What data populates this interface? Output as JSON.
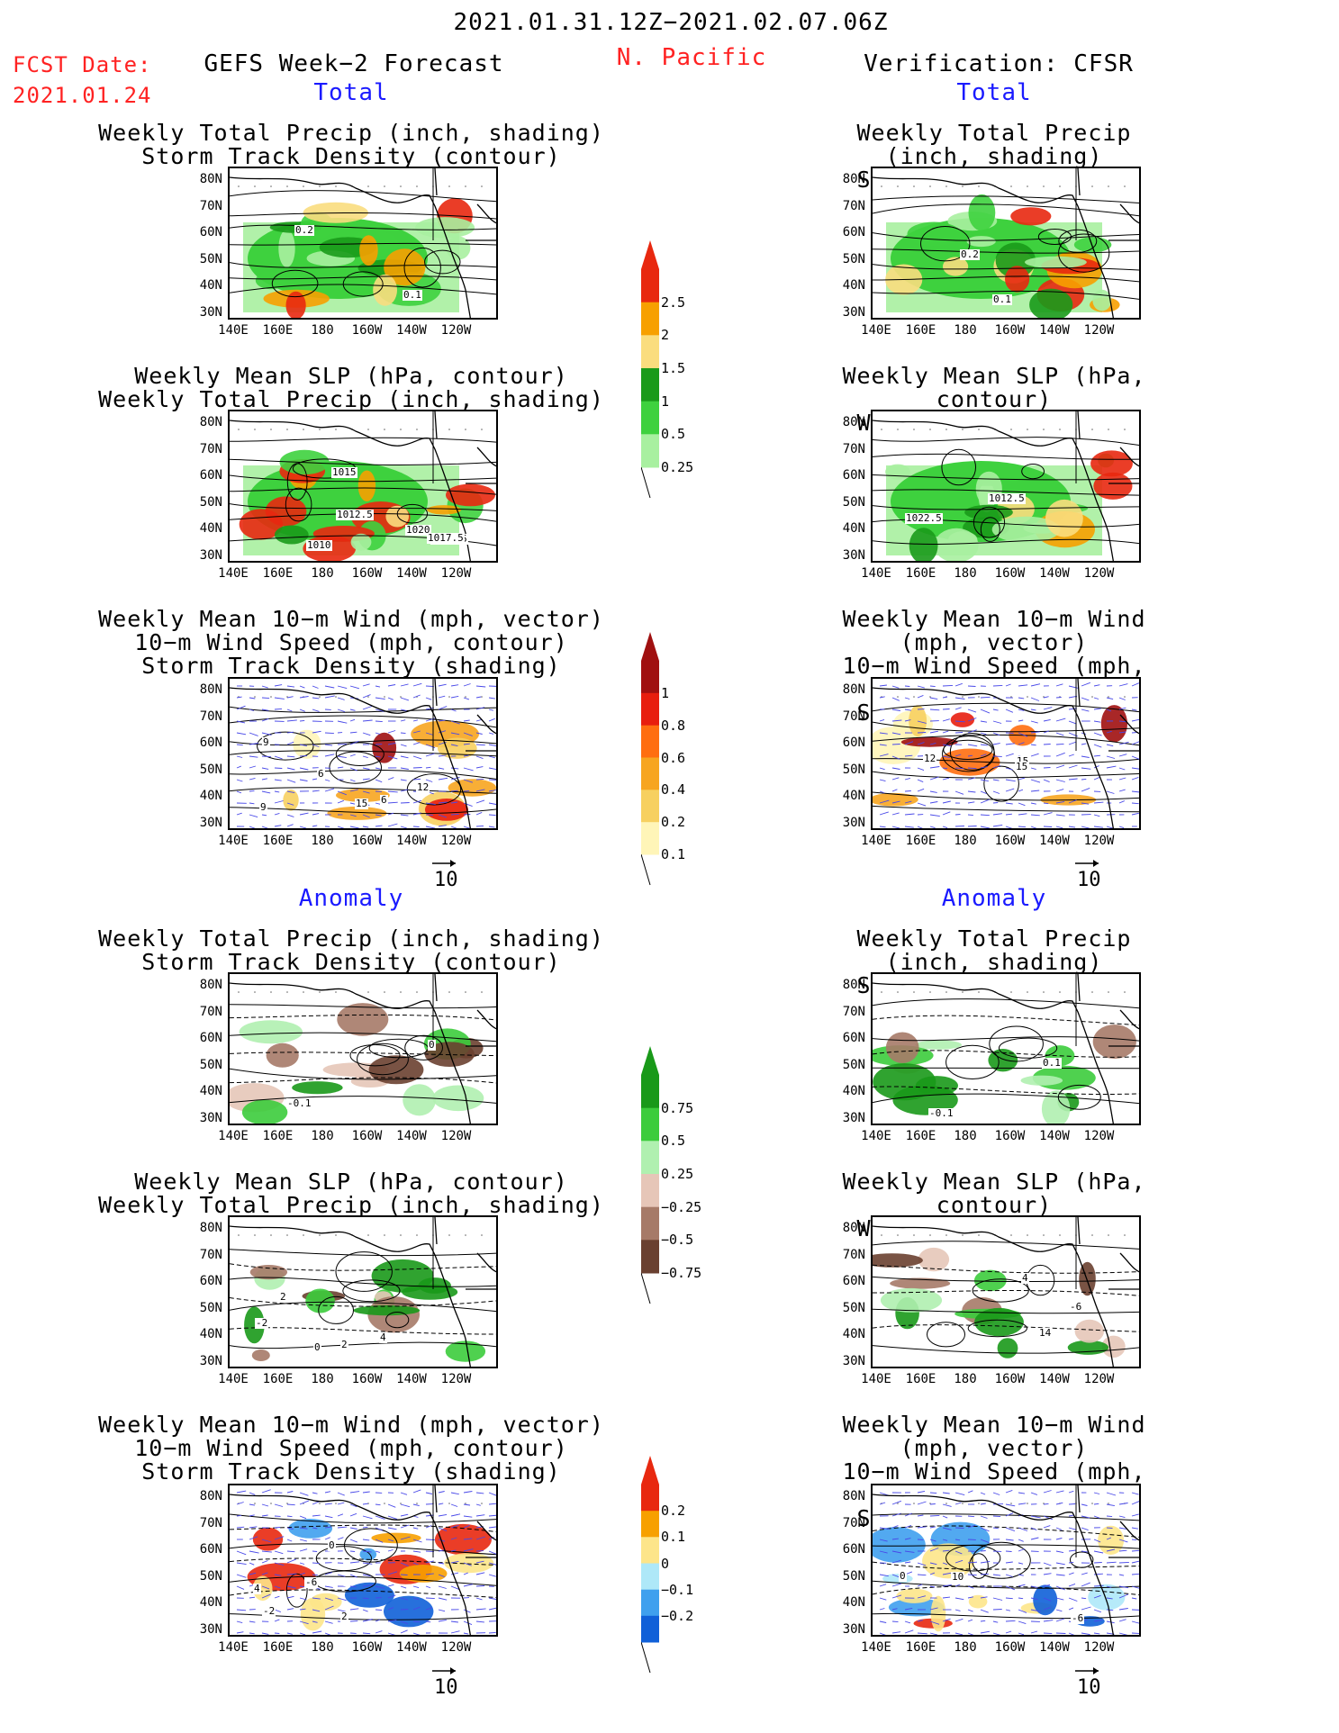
{
  "header": {
    "date_range": "2021.01.31.12Z−2021.02.07.06Z",
    "fcst_label": "FCST Date:",
    "fcst_date": "2021.01.24",
    "left_title": "GEFS Week−2 Forecast",
    "region": "N. Pacific",
    "right_title": "Verification: CFSR"
  },
  "sections": {
    "total": "Total",
    "anomaly": "Anomaly"
  },
  "panel_titles": {
    "precip_storm": [
      "Weekly Total Precip (inch, shading)",
      "Storm Track Density (contour)"
    ],
    "slp_precip": [
      "Weekly Mean SLP (hPa, contour)",
      "Weekly Total Precip (inch, shading)"
    ],
    "wind_storm": [
      "Weekly Mean 10−m Wind (mph, vector)",
      "10−m Wind Speed (mph, contour)",
      "Storm Track Density (shading)"
    ]
  },
  "axes": {
    "lat_labels": [
      "80N",
      "70N",
      "60N",
      "50N",
      "40N",
      "30N"
    ],
    "lon_labels": [
      "140E",
      "160E",
      "180",
      "160W",
      "140W",
      "120W"
    ]
  },
  "vector_ref": "10",
  "contour_labels": {
    "left_total_precip": [
      "0.2",
      "0.1"
    ],
    "right_total_precip": [
      "0.1",
      "0.2"
    ],
    "left_total_slp": [
      "1020",
      "1012.5",
      "1010",
      "1012.5",
      "1015",
      "1017.5"
    ],
    "right_total_slp": [
      "1022.5",
      "1012.5"
    ],
    "left_total_wind": [
      "6",
      "9",
      "15",
      "12",
      "6",
      "9"
    ],
    "right_total_wind": [
      "15",
      "15",
      "12"
    ],
    "left_anom_precip": [
      "0",
      "-0.1"
    ],
    "right_anom_precip": [
      "-0.1",
      "0.1"
    ],
    "left_anom_slp": [
      "2",
      "0",
      "-2",
      "4",
      "2"
    ],
    "right_anom_slp": [
      "14",
      "-6",
      "4"
    ],
    "left_anom_wind": [
      "4",
      "2",
      "-6",
      "-2",
      "0"
    ],
    "right_anom_wind": [
      "10",
      "0",
      "-6"
    ]
  },
  "colorbars": {
    "total_precip": {
      "labels": [
        "2.5",
        "2",
        "1.5",
        "1",
        "0.5",
        "0.25"
      ],
      "colors": [
        "#e8280f",
        "#f7a000",
        "#fadd7e",
        "#1a9a1a",
        "#3ed13e",
        "#a8f0a0"
      ]
    },
    "storm_density": {
      "labels": [
        "1",
        "0.8",
        "0.6",
        "0.4",
        "0.2",
        "0.1"
      ],
      "colors": [
        "#a01010",
        "#e81e0e",
        "#ff6e10",
        "#f7a520",
        "#f7d060",
        "#fff5b8"
      ]
    },
    "anom_precip": {
      "labels": [
        "0.75",
        "0.5",
        "0.25",
        "−0.25",
        "−0.5",
        "−0.75"
      ],
      "colors": [
        "#199919",
        "#3ccc3c",
        "#b0f0b0",
        "#e6c6b8",
        "#a67a68",
        "#6a4030"
      ]
    },
    "anom_density": {
      "labels": [
        "0.2",
        "0.1",
        "0",
        "−0.1",
        "−0.2"
      ],
      "colors": [
        "#e8280f",
        "#f7a000",
        "#fde58a",
        "#aee8f8",
        "#3fa0ee",
        "#1060d8"
      ]
    }
  }
}
